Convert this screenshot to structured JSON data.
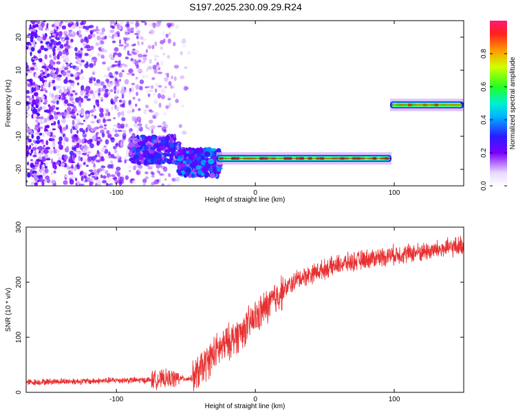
{
  "title": "S197.2025.230.09.29.R24",
  "colors": {
    "signal": "#e83030",
    "frame": "#000000"
  },
  "chart_data": [
    {
      "type": "heatmap",
      "xlabel": "Height of straight line (km)",
      "ylabel": "Frequency (Hz)",
      "xlim": [
        -165,
        150
      ],
      "ylim": [
        -25,
        25
      ],
      "x_ticks": [
        -100,
        0,
        100
      ],
      "y_ticks": [
        -20,
        -10,
        0,
        10,
        20
      ],
      "colorbar": {
        "label": "Normalized spectral amplitude",
        "range": [
          0,
          1
        ],
        "ticks": [
          "0.0",
          "0.2",
          "0.4",
          "0.6",
          "0.8"
        ],
        "tick_values": [
          0.0,
          0.2,
          0.4,
          0.6,
          0.8
        ]
      },
      "ridge_segments": [
        {
          "x_start": -90,
          "x_end": -55,
          "freq": -14,
          "amplitude": 0.3,
          "noisy": true
        },
        {
          "x_start": -55,
          "x_end": -25,
          "freq": -18,
          "amplitude": 0.35,
          "noisy": true
        },
        {
          "x_start": -28,
          "x_end": 98,
          "freq": -16.7,
          "amplitude": 0.9,
          "noisy": false
        },
        {
          "x_start": 97,
          "x_end": 150,
          "freq": -0.5,
          "amplitude": 0.85,
          "noisy": false
        }
      ],
      "noise_region": {
        "x_start": -165,
        "x_end": -45,
        "amplitude": 0.15
      }
    },
    {
      "type": "line",
      "xlabel": "Height of straight line (km)",
      "ylabel": "SNR (10 * v/v)",
      "xlim": [
        -165,
        150
      ],
      "ylim": [
        0,
        300
      ],
      "x_ticks": [
        -100,
        0,
        100
      ],
      "y_ticks": [
        0,
        100,
        200,
        300
      ],
      "series": [
        {
          "name": "SNR",
          "x": [
            -165,
            -140,
            -120,
            -100,
            -80,
            -60,
            -45,
            -38,
            -30,
            -20,
            -10,
            0,
            10,
            20,
            30,
            45,
            60,
            80,
            100,
            120,
            140,
            150
          ],
          "values": [
            18,
            20,
            20,
            22,
            22,
            25,
            25,
            45,
            70,
            90,
            110,
            135,
            160,
            185,
            205,
            220,
            232,
            242,
            250,
            255,
            262,
            268
          ]
        }
      ]
    }
  ]
}
